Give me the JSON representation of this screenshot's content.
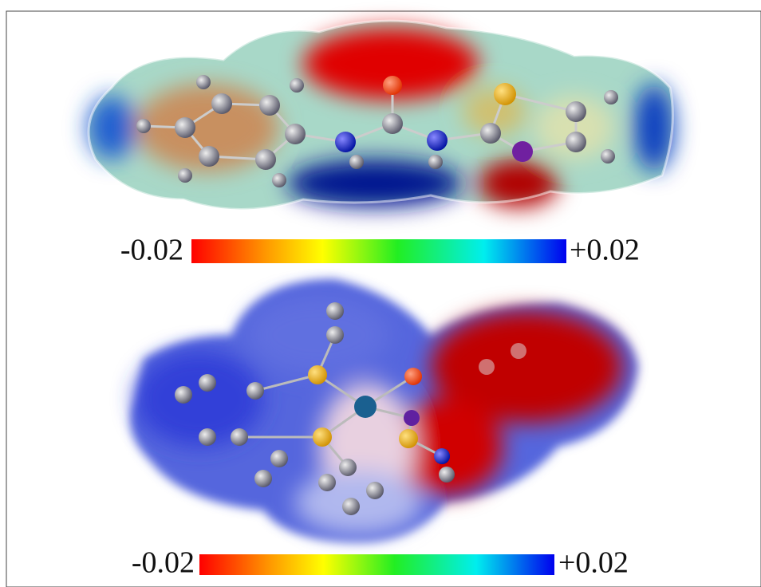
{
  "panels": [
    {
      "scale": {
        "min_label": "-0.02",
        "max_label": "+0.02"
      }
    },
    {
      "scale": {
        "min_label": "-0.02",
        "max_label": "+0.02"
      }
    }
  ]
}
